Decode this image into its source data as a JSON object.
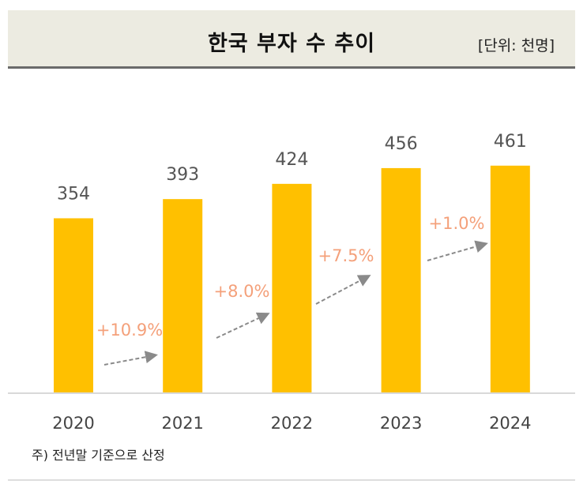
{
  "chart_data": {
    "type": "bar",
    "title": "한국 부자 수 추이",
    "unit": "[단위: 천명]",
    "categories": [
      "2020",
      "2021",
      "2022",
      "2023",
      "2024"
    ],
    "values": [
      354,
      393,
      424,
      456,
      461
    ],
    "growth": [
      "+10.9%",
      "+8.0%",
      "+7.5%",
      "+1.0%"
    ],
    "xlabel": "",
    "ylabel": "",
    "ylim": [
      0,
      480
    ],
    "grid": false,
    "note": "주) 전년말 기준으로 산정",
    "colors": {
      "bar": "#ffc000",
      "growth": "#f4a07a",
      "arrow": "#8a8a8a"
    }
  }
}
